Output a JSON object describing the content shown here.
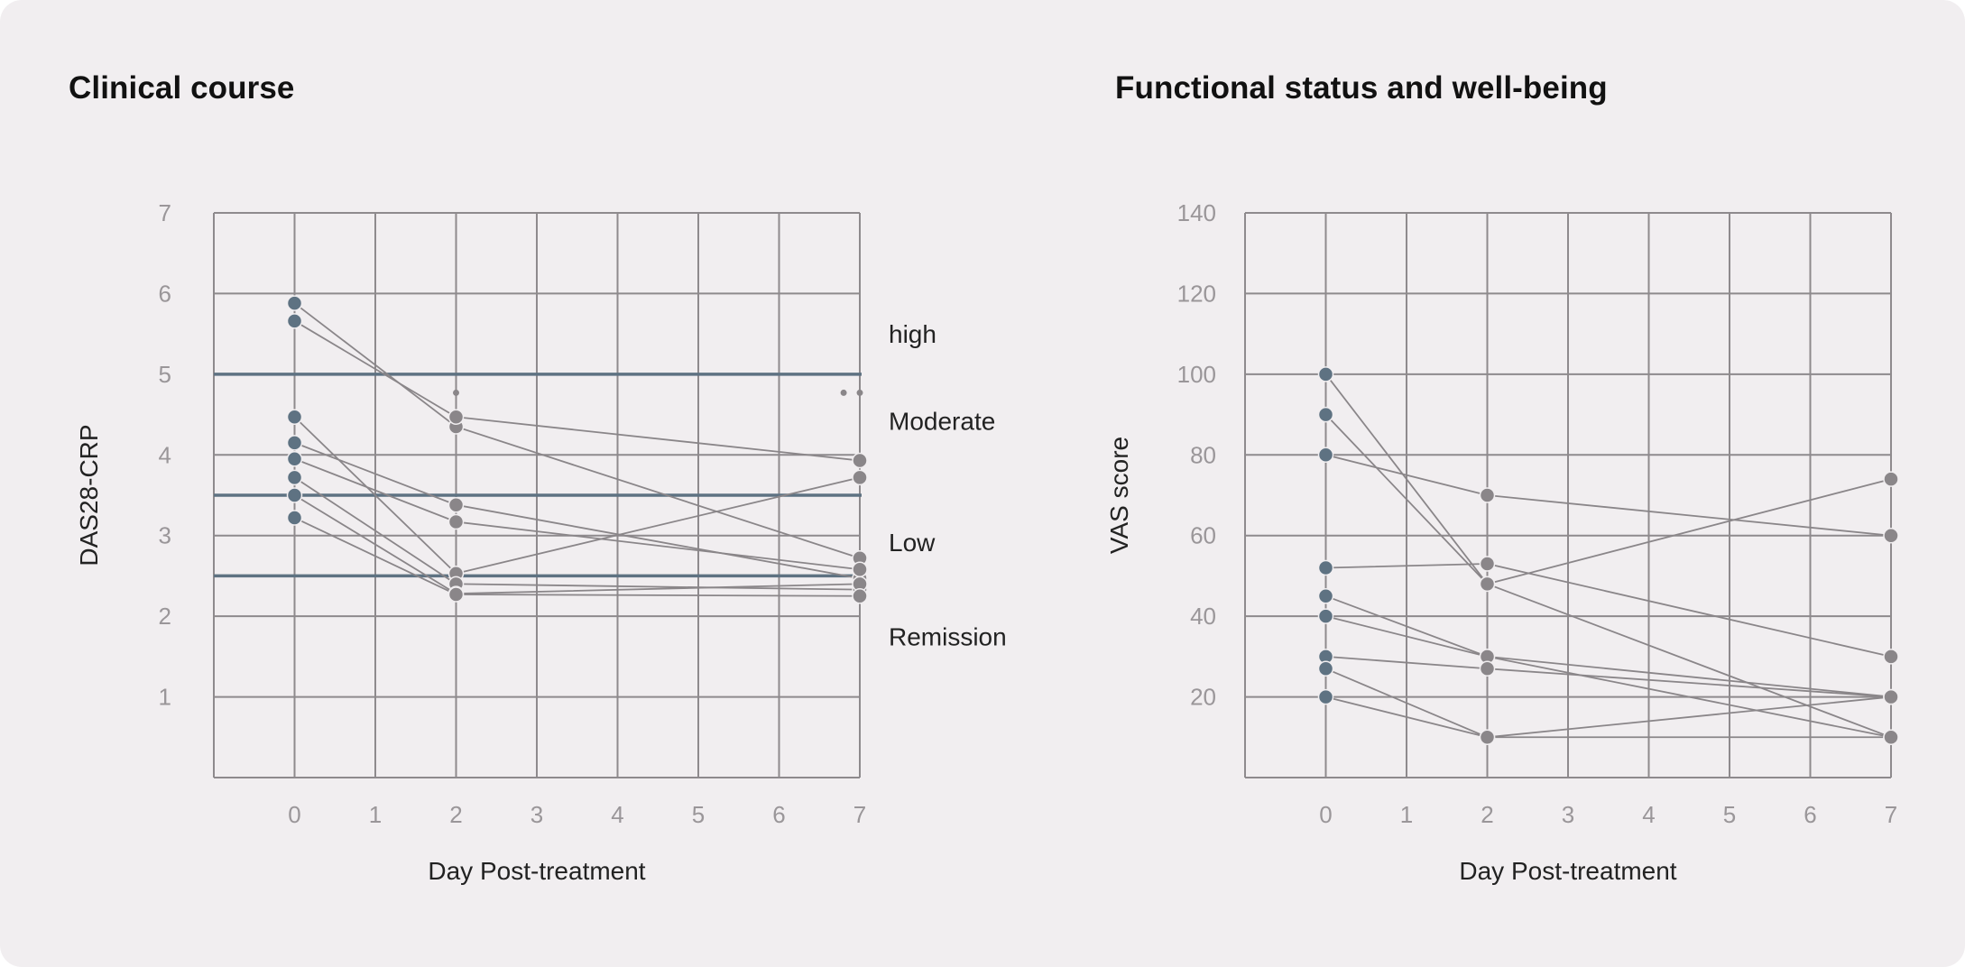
{
  "colors": {
    "background": "#f1eef0",
    "grid": "#8e8a8d",
    "threshold": "#5e7282",
    "baseline_point": "#5e7282",
    "followup_point": "#8a8689",
    "connector": "#8a8689"
  },
  "chart_data": [
    {
      "type": "line",
      "title": "Clinical course",
      "xlabel": "Day Post-treatment",
      "ylabel": "DAS28-CRP",
      "x_ticks": [
        "0",
        "1",
        "2",
        "3",
        "4",
        "5",
        "6",
        "7"
      ],
      "y_ticks": [
        "1",
        "2",
        "3",
        "4",
        "5",
        "6",
        "7"
      ],
      "xlim": [
        -1,
        7
      ],
      "ylim": [
        0,
        7
      ],
      "grid": true,
      "thresholds": [
        5.0,
        3.5,
        2.5
      ],
      "zone_labels": [
        {
          "text": "high",
          "y": 5.5
        },
        {
          "text": "Moderate",
          "y": 4.42
        },
        {
          "text": "Low",
          "y": 2.92
        },
        {
          "text": "Remission",
          "y": 1.75
        }
      ],
      "series": [
        {
          "x": [
            0,
            2,
            7
          ],
          "y": [
            5.88,
            4.35,
            2.72
          ]
        },
        {
          "x": [
            0,
            2,
            7
          ],
          "y": [
            5.66,
            4.47,
            3.93
          ]
        },
        {
          "x": [
            0,
            2,
            7
          ],
          "y": [
            4.47,
            2.53,
            3.72
          ]
        },
        {
          "x": [
            0,
            2,
            7
          ],
          "y": [
            4.15,
            3.38,
            2.47
          ]
        },
        {
          "x": [
            0,
            2,
            7
          ],
          "y": [
            3.95,
            3.17,
            2.58
          ]
        },
        {
          "x": [
            0,
            2,
            7
          ],
          "y": [
            3.72,
            2.4,
            2.33
          ]
        },
        {
          "x": [
            0,
            2,
            7
          ],
          "y": [
            3.5,
            2.28,
            2.4
          ]
        },
        {
          "x": [
            0,
            2,
            7
          ],
          "y": [
            3.22,
            2.27,
            2.25
          ]
        }
      ],
      "small_markers": [
        {
          "x": 2,
          "y": 4.77
        },
        {
          "x": 6.8,
          "y": 4.77
        },
        {
          "x": 7,
          "y": 4.77
        }
      ]
    },
    {
      "type": "line",
      "title": "Functional status and well-being",
      "xlabel": "Day Post-treatment",
      "ylabel": "VAS score",
      "x_ticks": [
        "0",
        "1",
        "2",
        "3",
        "4",
        "5",
        "6",
        "7"
      ],
      "y_ticks": [
        "20",
        "40",
        "60",
        "80",
        "100",
        "120",
        "140"
      ],
      "xlim": [
        -1,
        7
      ],
      "ylim": [
        0,
        140
      ],
      "grid": true,
      "series": [
        {
          "x": [
            0,
            2,
            7
          ],
          "y": [
            100,
            48,
            10
          ]
        },
        {
          "x": [
            0,
            2,
            7
          ],
          "y": [
            90,
            48,
            74
          ]
        },
        {
          "x": [
            0,
            2,
            7
          ],
          "y": [
            80,
            70,
            60
          ]
        },
        {
          "x": [
            0,
            2,
            7
          ],
          "y": [
            52,
            53,
            30
          ]
        },
        {
          "x": [
            0,
            2,
            7
          ],
          "y": [
            45,
            30,
            10
          ]
        },
        {
          "x": [
            0,
            2,
            7
          ],
          "y": [
            40,
            30,
            20
          ]
        },
        {
          "x": [
            0,
            2,
            7
          ],
          "y": [
            30,
            27,
            20
          ]
        },
        {
          "x": [
            0,
            2,
            7
          ],
          "y": [
            27,
            10,
            20
          ]
        },
        {
          "x": [
            0,
            2,
            7
          ],
          "y": [
            20,
            10,
            10
          ]
        }
      ]
    }
  ]
}
